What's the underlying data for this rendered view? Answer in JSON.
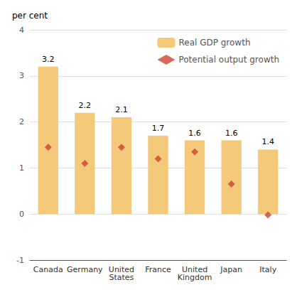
{
  "chart_data": {
    "type": "bar",
    "categories": [
      "Canada",
      "Germany",
      "United\nStates",
      "France",
      "United\nKingdom",
      "Japan",
      "Italy"
    ],
    "series": [
      {
        "name": "Real GDP growth",
        "type": "bar",
        "color": "#F5C97A",
        "values": [
          3.2,
          2.2,
          2.1,
          1.7,
          1.6,
          1.6,
          1.4
        ],
        "data_labels": true
      },
      {
        "name": "Potential output growth",
        "type": "scatter",
        "marker": "diamond",
        "color": "#CC4433",
        "values": [
          1.45,
          1.1,
          1.45,
          1.2,
          1.35,
          0.65,
          -0.02
        ]
      }
    ],
    "ylabel": "per cent",
    "ylim": [
      -1,
      4
    ],
    "yticks": [
      -1,
      0,
      1,
      2,
      3,
      4
    ],
    "grid": true,
    "legend": "upper right"
  }
}
